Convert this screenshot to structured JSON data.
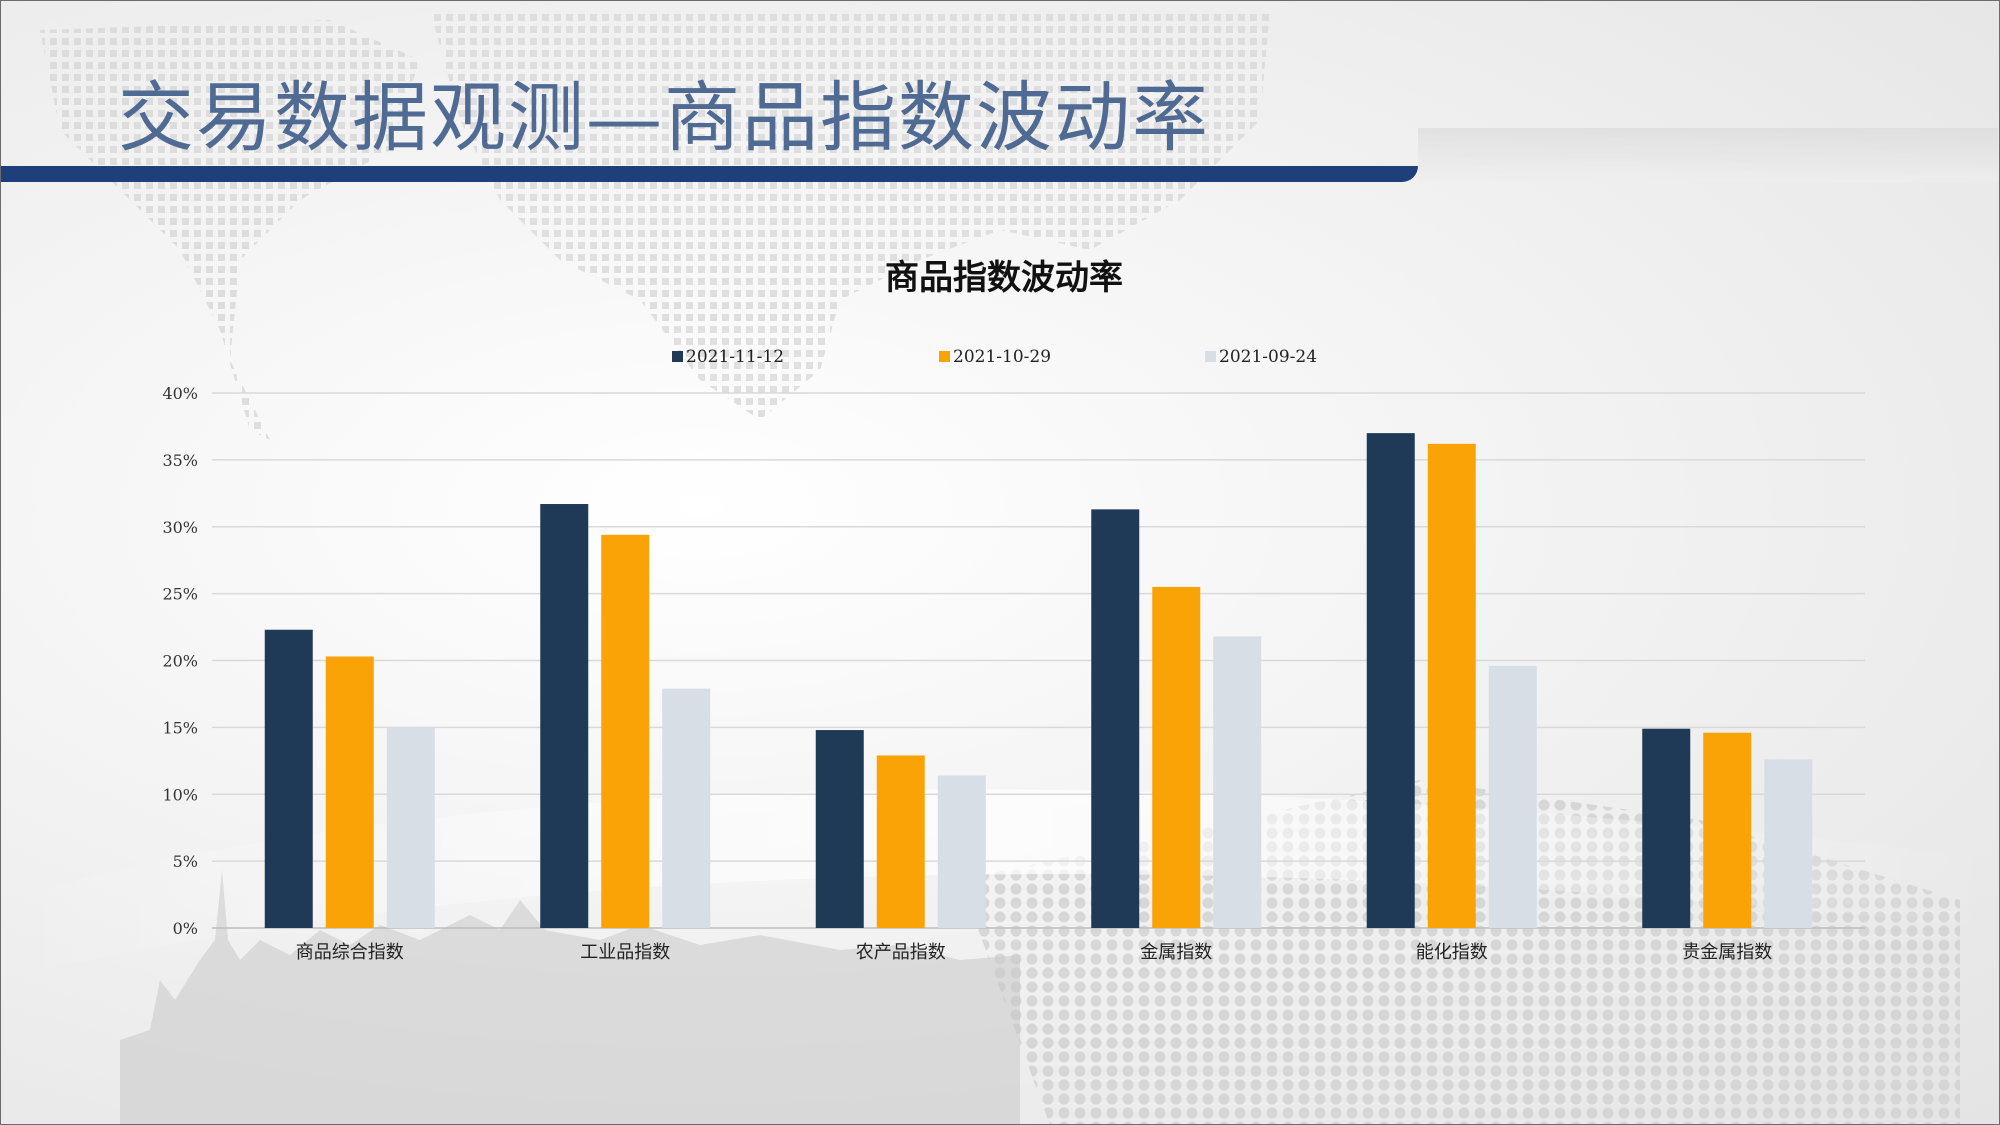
{
  "slide": {
    "title": "交易数据观测—商品指数波动率"
  },
  "colors": {
    "title": "#4f6a93",
    "title_bar": "#1f3f7a"
  },
  "chart_data": {
    "type": "bar",
    "title": "商品指数波动率",
    "categories": [
      "商品综合指数",
      "工业品指数",
      "农产品指数",
      "金属指数",
      "能化指数",
      "贵金属指数"
    ],
    "series": [
      {
        "name": "2021-11-12",
        "color": "#1f3a57",
        "values": [
          22.3,
          31.7,
          14.8,
          31.3,
          37.0,
          14.9
        ]
      },
      {
        "name": "2021-10-29",
        "color": "#f9a307",
        "values": [
          20.3,
          29.4,
          12.9,
          25.5,
          36.2,
          14.6
        ]
      },
      {
        "name": "2021-09-24",
        "color": "#d7dee6",
        "values": [
          15.0,
          17.9,
          11.4,
          21.8,
          19.6,
          12.6
        ]
      }
    ],
    "ylim": [
      0,
      40
    ],
    "yticks": [
      "0%",
      "5%",
      "10%",
      "15%",
      "20%",
      "25%",
      "30%",
      "35%",
      "40%"
    ],
    "ytick_values": [
      0,
      5,
      10,
      15,
      20,
      25,
      30,
      35,
      40
    ],
    "legend_position": "top",
    "grid": true
  }
}
